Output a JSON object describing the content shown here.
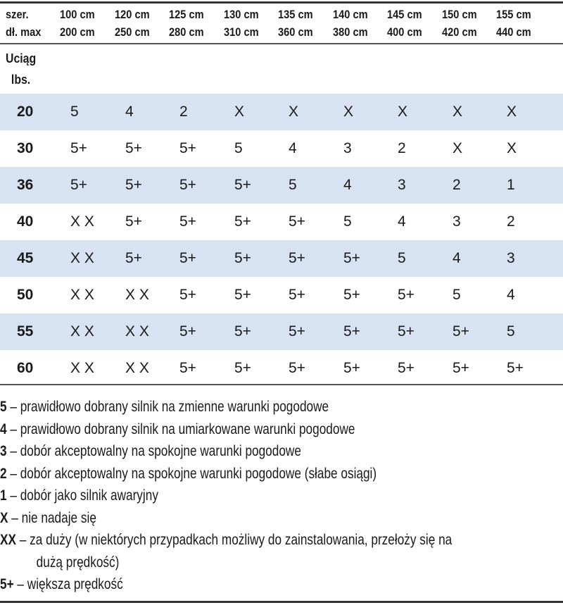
{
  "header": {
    "row_label_1": "szer.",
    "row_label_2": "dł. max",
    "columns": [
      {
        "width": "100 cm",
        "length": "200 cm"
      },
      {
        "width": "120 cm",
        "length": "250 cm"
      },
      {
        "width": "125 cm",
        "length": "280 cm"
      },
      {
        "width": "130 cm",
        "length": "310 cm"
      },
      {
        "width": "135 cm",
        "length": "360 cm"
      },
      {
        "width": "140 cm",
        "length": "380 cm"
      },
      {
        "width": "145 cm",
        "length": "400 cm"
      },
      {
        "width": "150 cm",
        "length": "420 cm"
      },
      {
        "width": "155 cm",
        "length": "440 cm"
      }
    ],
    "unit_line_1": "Uciąg",
    "unit_line_2": "lbs."
  },
  "rows": [
    {
      "thrust": "20",
      "values": [
        "5",
        "4",
        "2",
        "X",
        "X",
        "X",
        "X",
        "X",
        "X"
      ]
    },
    {
      "thrust": "30",
      "values": [
        "5+",
        "5+",
        "5+",
        "5",
        "4",
        "3",
        "2",
        "X",
        "X"
      ]
    },
    {
      "thrust": "36",
      "values": [
        "5+",
        "5+",
        "5+",
        "5+",
        "5",
        "4",
        "3",
        "2",
        "1"
      ]
    },
    {
      "thrust": "40",
      "values": [
        "X X",
        "5+",
        "5+",
        "5+",
        "5+",
        "5",
        "4",
        "3",
        "2"
      ]
    },
    {
      "thrust": "45",
      "values": [
        "X X",
        "5+",
        "5+",
        "5+",
        "5+",
        "5+",
        "5",
        "4",
        "3"
      ]
    },
    {
      "thrust": "50",
      "values": [
        "X X",
        "X X",
        "5+",
        "5+",
        "5+",
        "5+",
        "5+",
        "5",
        "4"
      ]
    },
    {
      "thrust": "55",
      "values": [
        "X X",
        "X X",
        "5+",
        "5+",
        "5+",
        "5+",
        "5+",
        "5+",
        "5"
      ]
    },
    {
      "thrust": "60",
      "values": [
        "X X",
        "X X",
        "5+",
        "5+",
        "5+",
        "5+",
        "5+",
        "5+",
        "5+"
      ]
    }
  ],
  "legend": [
    {
      "key": "5",
      "text": " – prawidłowo dobrany silnik na zmienne warunki pogodowe"
    },
    {
      "key": "4",
      "text": " – prawidłowo dobrany silnik na umiarkowane warunki pogodowe"
    },
    {
      "key": "3",
      "text": " – dobór akceptowalny na spokojne warunki pogodowe"
    },
    {
      "key": "2",
      "text": " – dobór akceptowalny na spokojne warunki pogodowe (słabe osiągi)"
    },
    {
      "key": "1",
      "text": " – dobór jako silnik awaryjny"
    },
    {
      "key": "X",
      "text": " – nie nadaje się"
    },
    {
      "key": "XX",
      "text": " – za duży (w niektórych przypadkach możliwy do zainstalowania, przełoży się na"
    },
    {
      "key": "",
      "text": "dużą prędkość)"
    },
    {
      "key": "5+",
      "text": " – większa prędkość"
    }
  ],
  "colors": {
    "shaded_row": "#d7e2f3",
    "rule": "#333333"
  }
}
